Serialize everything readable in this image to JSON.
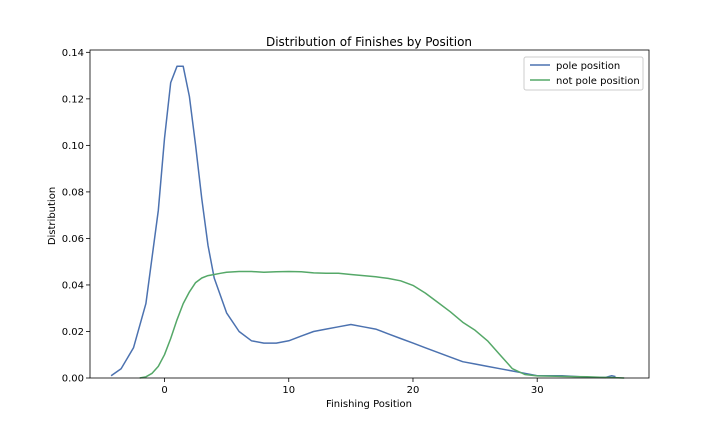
{
  "chart_data": {
    "type": "line",
    "title": "Distribution of Finishes by Position",
    "xlabel": "Finishing Position",
    "ylabel": "Distribution",
    "xlim": [
      -6,
      39
    ],
    "ylim": [
      0,
      0.141
    ],
    "xticks": [
      0,
      10,
      20,
      30
    ],
    "xtick_labels": [
      "0",
      "10",
      "20",
      "30"
    ],
    "yticks": [
      0,
      0.02,
      0.04,
      0.06,
      0.08,
      0.1,
      0.12,
      0.14
    ],
    "ytick_labels": [
      "0.00",
      "0.02",
      "0.04",
      "0.06",
      "0.08",
      "0.10",
      "0.12",
      "0.14"
    ],
    "grid": false,
    "legend_position": "top-right",
    "series": [
      {
        "name": "pole position",
        "color": "#4c72b0",
        "x": [
          -4.3,
          -3.5,
          -2.5,
          -1.5,
          -0.5,
          0.0,
          0.5,
          1.0,
          1.5,
          2.0,
          2.5,
          3.0,
          3.5,
          4.0,
          5.0,
          6.0,
          7.0,
          8.0,
          9.0,
          10.0,
          11.0,
          12.0,
          13.0,
          14.0,
          15.0,
          16.0,
          17.0,
          18.0,
          19.0,
          20.0,
          21.0,
          22.0,
          23.0,
          24.0,
          25.0,
          26.0,
          27.0,
          28.0,
          29.0,
          30.0,
          32.0,
          34.0,
          35.5,
          36.0,
          36.3
        ],
        "y": [
          0.001,
          0.004,
          0.013,
          0.032,
          0.072,
          0.103,
          0.127,
          0.134,
          0.134,
          0.121,
          0.1,
          0.077,
          0.057,
          0.043,
          0.028,
          0.02,
          0.016,
          0.015,
          0.015,
          0.016,
          0.018,
          0.02,
          0.021,
          0.022,
          0.023,
          0.022,
          0.021,
          0.019,
          0.017,
          0.015,
          0.013,
          0.011,
          0.009,
          0.007,
          0.006,
          0.005,
          0.004,
          0.003,
          0.002,
          0.001,
          0.001,
          0.0004,
          0.0002,
          0.001,
          0.0006
        ]
      },
      {
        "name": "not pole position",
        "color": "#55a868",
        "x": [
          -2.0,
          -1.5,
          -1.0,
          -0.5,
          0.0,
          0.5,
          1.0,
          1.5,
          2.0,
          2.5,
          3.0,
          3.5,
          4.0,
          4.5,
          5.0,
          6.0,
          7.0,
          8.0,
          9.0,
          10.0,
          11.0,
          12.0,
          13.0,
          14.0,
          15.0,
          16.0,
          17.0,
          18.0,
          19.0,
          20.0,
          21.0,
          22.0,
          23.0,
          24.0,
          25.0,
          26.0,
          27.0,
          28.0,
          29.0,
          30.0,
          31.0,
          32.0,
          33.0,
          34.0,
          35.0,
          36.0,
          37.0
        ],
        "y": [
          0.0,
          0.0005,
          0.002,
          0.005,
          0.01,
          0.017,
          0.025,
          0.032,
          0.037,
          0.041,
          0.043,
          0.044,
          0.0445,
          0.045,
          0.0455,
          0.0458,
          0.0458,
          0.0455,
          0.0457,
          0.0458,
          0.0457,
          0.0452,
          0.045,
          0.045,
          0.0445,
          0.044,
          0.0435,
          0.0428,
          0.0418,
          0.0398,
          0.0365,
          0.0325,
          0.0285,
          0.024,
          0.0205,
          0.016,
          0.01,
          0.004,
          0.0015,
          0.0009,
          0.0008,
          0.0007,
          0.0006,
          0.0005,
          0.0003,
          0.0002,
          0.0
        ]
      }
    ]
  }
}
